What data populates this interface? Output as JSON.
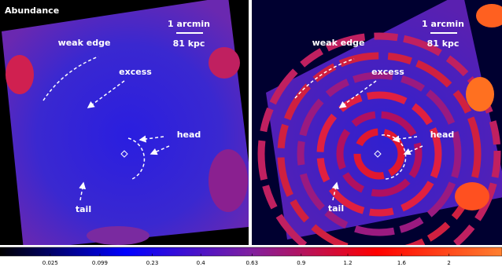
{
  "title": "Abundance",
  "panels": [
    {
      "scale_bar": {
        "angle": "1 arcmin",
        "length": "81 kpc"
      },
      "labels": {
        "weak_edge": "weak edge",
        "excess": "excess",
        "head": "head",
        "tail": "tail"
      }
    },
    {
      "scale_bar": {
        "angle": "1 arcmin",
        "length": "81 kpc"
      },
      "labels": {
        "weak_edge": "weak edge",
        "excess": "excess",
        "head": "head",
        "tail": "tail"
      }
    }
  ],
  "colorbar": {
    "scale": "sqrt",
    "lim": [
      0,
      2.5
    ],
    "ticks": [
      0.025,
      0.099,
      0.23,
      0.4,
      0.63,
      0.9,
      1.2,
      1.6,
      2
    ],
    "colors": [
      "#000000",
      "#0000ff",
      "#8020a0",
      "#ff0000",
      "#ff8030"
    ]
  }
}
